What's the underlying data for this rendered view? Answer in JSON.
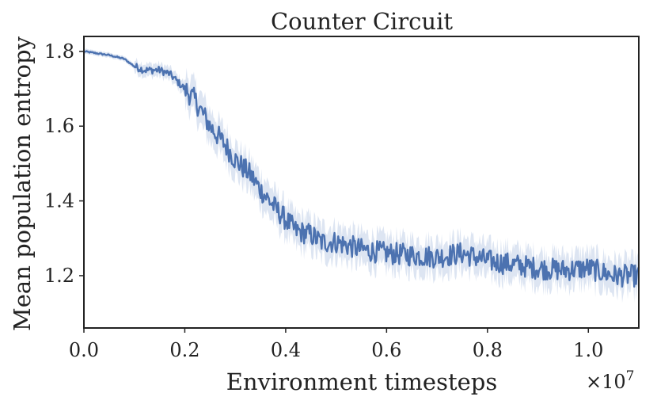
{
  "chart_data": {
    "type": "line",
    "title": "Counter Circuit",
    "xlabel": "Environment timesteps",
    "ylabel": "Mean population entropy",
    "x_scale_label": "×10^7",
    "x_scale_base": "×10",
    "x_scale_exp": "7",
    "xlim": [
      0.0,
      1.1
    ],
    "ylim": [
      1.06,
      1.84
    ],
    "x_ticks": [
      0.0,
      0.2,
      0.4,
      0.6,
      0.8,
      1.0
    ],
    "x_tick_labels": [
      "0.0",
      "0.2",
      "0.4",
      "0.6",
      "0.8",
      "1.0"
    ],
    "y_ticks": [
      1.2,
      1.4,
      1.6,
      1.8
    ],
    "y_tick_labels": [
      "1.2",
      "1.4",
      "1.6",
      "1.8"
    ],
    "grid": false,
    "legend": false,
    "colors": {
      "line": "#4c72b0",
      "band": "#c6d3ea",
      "axes": "#222222"
    },
    "series": [
      {
        "x": [
          0.0,
          0.05,
          0.08,
          0.1,
          0.12,
          0.15,
          0.17,
          0.2,
          0.22,
          0.25,
          0.28,
          0.3,
          0.33,
          0.35,
          0.38,
          0.4,
          0.42,
          0.45,
          0.47,
          0.5,
          0.55,
          0.6,
          0.65,
          0.7,
          0.75,
          0.8,
          0.85,
          0.9,
          0.95,
          1.0,
          1.05,
          1.1
        ],
        "values": [
          1.8,
          1.79,
          1.78,
          1.76,
          1.75,
          1.75,
          1.74,
          1.7,
          1.67,
          1.6,
          1.55,
          1.51,
          1.47,
          1.43,
          1.38,
          1.35,
          1.32,
          1.31,
          1.29,
          1.29,
          1.27,
          1.26,
          1.255,
          1.25,
          1.26,
          1.24,
          1.23,
          1.22,
          1.215,
          1.22,
          1.2,
          1.2
        ]
      }
    ]
  }
}
